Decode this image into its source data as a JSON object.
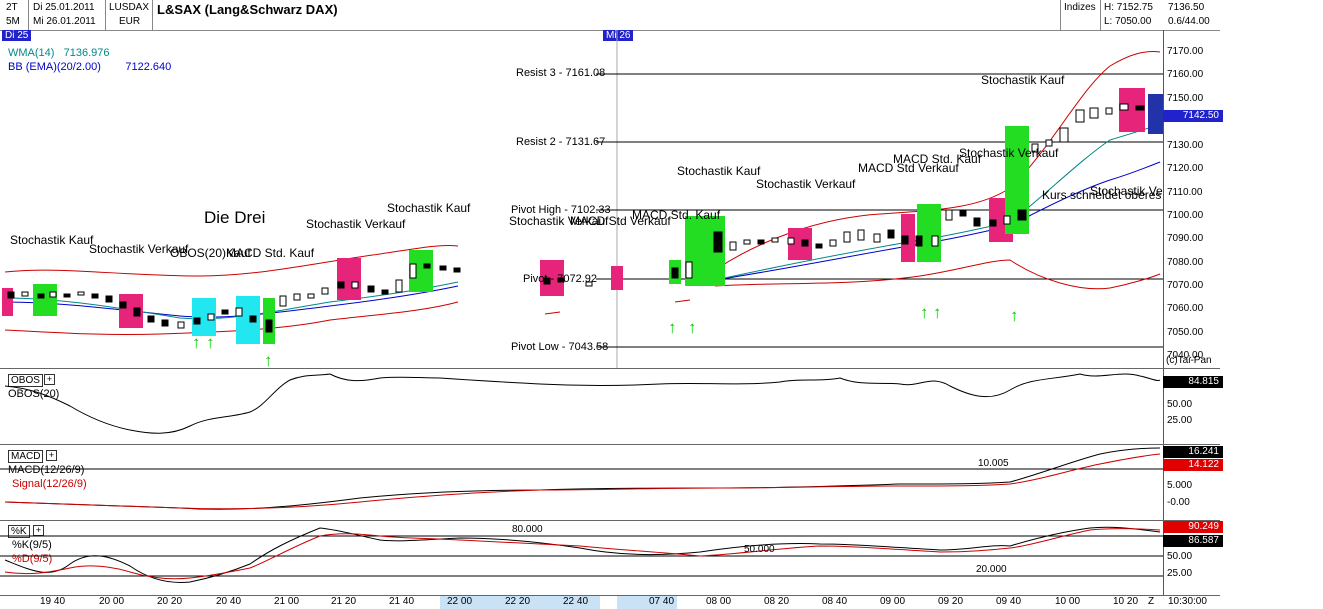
{
  "header": {
    "period_1": "2T",
    "period_2": "5M",
    "date_range_1": "Di 25.01.2011",
    "date_range_2": "Mi 26.01.2011",
    "symbol": "LUSDAX",
    "currency": "EUR",
    "title": "L&SAX (Lang&Schwarz DAX)",
    "index_label": "Indizes",
    "high": "H: 7152.75",
    "low": "L: 7050.00",
    "last": "7136.50",
    "change": "0.6/44.00"
  },
  "day_tags": [
    "Di 25",
    "Mi 26"
  ],
  "legend": {
    "wma": "WMA(14)",
    "wma_value": "7136.976",
    "bb": "BB (EMA)(20/2.00)",
    "bb_value": "7122.640"
  },
  "levels": {
    "r3": "Resist 3 - 7161.08",
    "r2": "Resist 2 - 7131.67",
    "ph": "Pivot High - 7102.33",
    "pv": "Pivot - 7072.92",
    "pl": "Pivot Low - 7043.58"
  },
  "annotations": {
    "a1": "Stochastik Kauf",
    "a2": "Stochastik Verkauf",
    "a3": "OBOS(20)Kauf",
    "a4": "MACD Std. Kauf",
    "a5": "Die Drei",
    "a6": "Stochastik Verkauf",
    "a7": "Stochastik Kauf",
    "a8": "Stochastik Verkauf",
    "a9": "MACD Std Verkauf",
    "a10": "MACD Std. Kauf",
    "a11": "Stochastik Kauf",
    "a12": "Stochastik Verkauf",
    "a13": "MACD Std Verkauf",
    "a14": "MACD Std. Kauf",
    "a15": "Stochastik Verkauf",
    "a16": "Stochastik Kauf",
    "a17": "Kurs schneidet oberes",
    "a18": "Stochastik Ve"
  },
  "price_axis": {
    "labels": [
      "7170.00",
      "7160.00",
      "7150.00",
      "7130.00",
      "7120.00",
      "7110.00",
      "7100.00",
      "7090.00",
      "7080.00",
      "7070.00",
      "7060.00",
      "7050.00",
      "7040.00"
    ],
    "current": "7142.50",
    "copyright": "(c)Tai-Pan"
  },
  "obos": {
    "button": "OBOS",
    "label": "OBOS(20)",
    "value": "84.815",
    "axis": [
      "50.00",
      "25.00"
    ]
  },
  "macd": {
    "button": "MACD",
    "label": "MACD(12/26/9)",
    "signal_label": "Signal(12/26/9)",
    "value": "16.241",
    "signal_value": "14.122",
    "level": "10.005",
    "axis": [
      "5.000",
      "-0.00"
    ]
  },
  "stoch": {
    "button": "%K",
    "k_label": "%K(9/5)",
    "d_label": "%D(9/5)",
    "k_value": "90.249",
    "d_value": "86.587",
    "level80": "80.000",
    "level50": "50.000",
    "level20": "20.000",
    "axis": [
      "50.00",
      "25.00"
    ]
  },
  "x_axis": {
    "labels": [
      "19 40",
      "20 00",
      "20 20",
      "20 40",
      "21 00",
      "21 20",
      "21 40",
      "22 00",
      "22 20",
      "22 40",
      "07 40",
      "08 00",
      "08 20",
      "08 40",
      "09 00",
      "09 20",
      "09 40",
      "10 00",
      "10 20",
      "Z"
    ],
    "time": "10:30:00"
  },
  "colors": {
    "bull_box": "#22dd22",
    "bear_box": "#e6247a",
    "cyan_box": "#22e6f0",
    "bb_line": "#cc0000",
    "ema_line": "#0000cc",
    "wma_line": "#008888"
  }
}
